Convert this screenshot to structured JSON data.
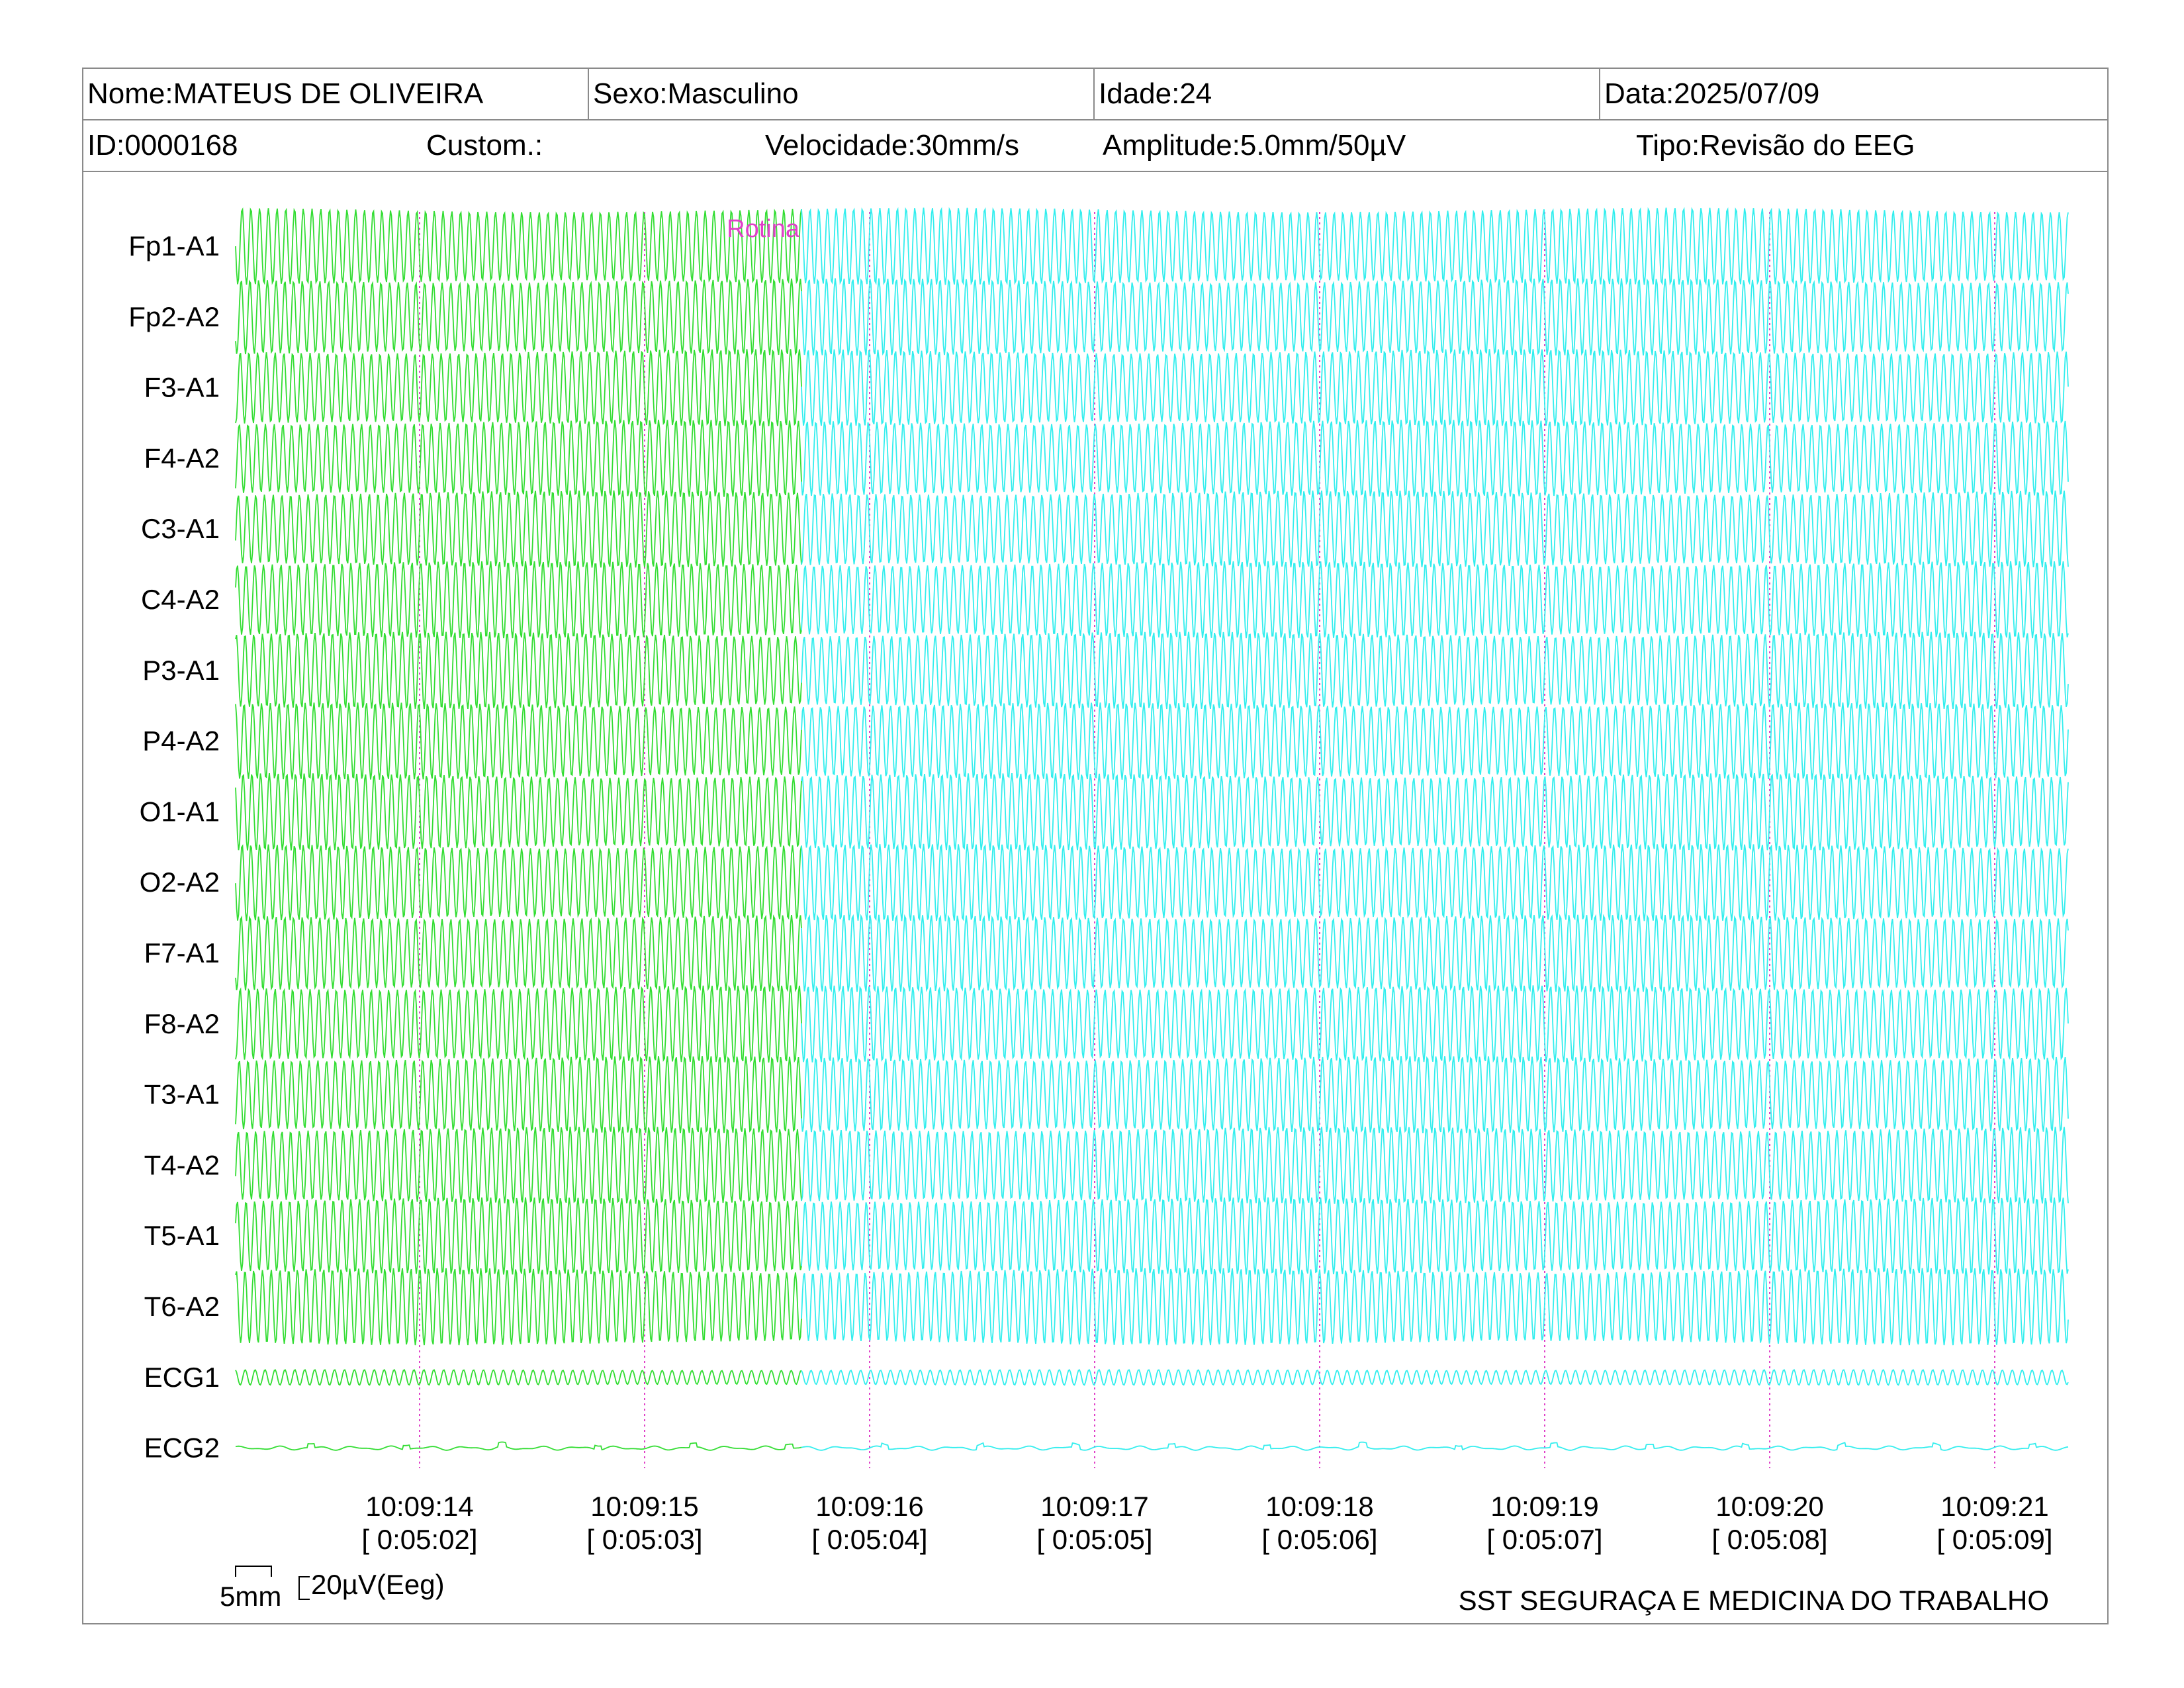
{
  "header": {
    "row1": {
      "name": "Nome:MATEUS DE OLIVEIRA",
      "sex": "Sexo:Masculino",
      "age": "Idade:24",
      "date": "Data:2025/07/09"
    },
    "row2": {
      "id": "ID:0000168",
      "custom": "Custom.:",
      "speed": "Velocidade:30mm/s",
      "amplitude": "Amplitude:5.0mm/50µV",
      "type": "Tipo:Revisão do EEG"
    }
  },
  "chart_data": {
    "type": "line",
    "channels": [
      "Fp1-A1",
      "Fp2-A2",
      "F3-A1",
      "F4-A2",
      "C3-A1",
      "C4-A2",
      "P3-A1",
      "P4-A2",
      "O1-A1",
      "O2-A2",
      "F7-A1",
      "F8-A2",
      "T3-A1",
      "T4-A2",
      "T5-A1",
      "T6-A2",
      "ECG1",
      "ECG2"
    ],
    "time_ticks": [
      {
        "clock": "10:09:14",
        "elapsed": "[ 0:05:02]"
      },
      {
        "clock": "10:09:15",
        "elapsed": "[ 0:05:03]"
      },
      {
        "clock": "10:09:16",
        "elapsed": "[ 0:05:04]"
      },
      {
        "clock": "10:09:17",
        "elapsed": "[ 0:05:05]"
      },
      {
        "clock": "10:09:18",
        "elapsed": "[ 0:05:06]"
      },
      {
        "clock": "10:09:19",
        "elapsed": "[ 0:05:07]"
      },
      {
        "clock": "10:09:20",
        "elapsed": "[ 0:05:08]"
      },
      {
        "clock": "10:09:21",
        "elapsed": "[ 0:05:09]"
      }
    ],
    "event": {
      "label": "Rotina",
      "time": "10:09:15.7"
    },
    "segments": [
      {
        "color": "#33dd33",
        "until_time": "10:09:15.7"
      },
      {
        "color": "#33eeee",
        "from_time": "10:09:15.7"
      }
    ],
    "marker_color": "#e040c8",
    "grid": "vertical dotted at each second"
  },
  "footer": {
    "scale_time": "5mm",
    "scale_amp": "20µV(Eeg)",
    "org": "SST SEGURAÇA E MEDICINA DO TRABALHO"
  }
}
